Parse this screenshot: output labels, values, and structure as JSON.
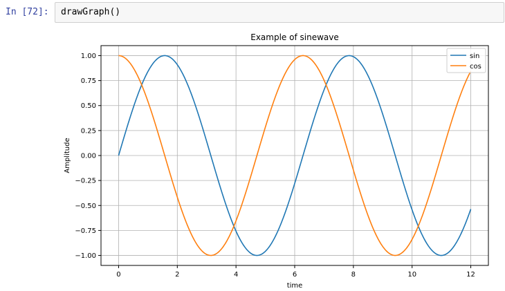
{
  "cell": {
    "prompt": "In [72]:",
    "code": "drawGraph()"
  },
  "chart_data": {
    "type": "line",
    "title": "Example of sinewave",
    "xlabel": "time",
    "ylabel": "Amplitude",
    "xlim": [
      -0.6,
      12.6
    ],
    "ylim": [
      -1.1,
      1.1
    ],
    "xticks": [
      0,
      2,
      4,
      6,
      8,
      10,
      12
    ],
    "yticks": [
      -1.0,
      -0.75,
      -0.5,
      -0.25,
      0.0,
      0.25,
      0.5,
      0.75,
      1.0
    ],
    "ytick_labels": [
      "−1.00",
      "−0.75",
      "−0.50",
      "−0.25",
      "0.00",
      "0.25",
      "0.50",
      "0.75",
      "1.00"
    ],
    "grid": true,
    "legend_position": "top-right",
    "series": [
      {
        "name": "sin",
        "function": "sin",
        "x_start": 0,
        "x_end": 12,
        "color": "#1f77b4"
      },
      {
        "name": "cos",
        "function": "cos",
        "x_start": 0,
        "x_end": 12,
        "color": "#ff7f0e"
      }
    ]
  }
}
